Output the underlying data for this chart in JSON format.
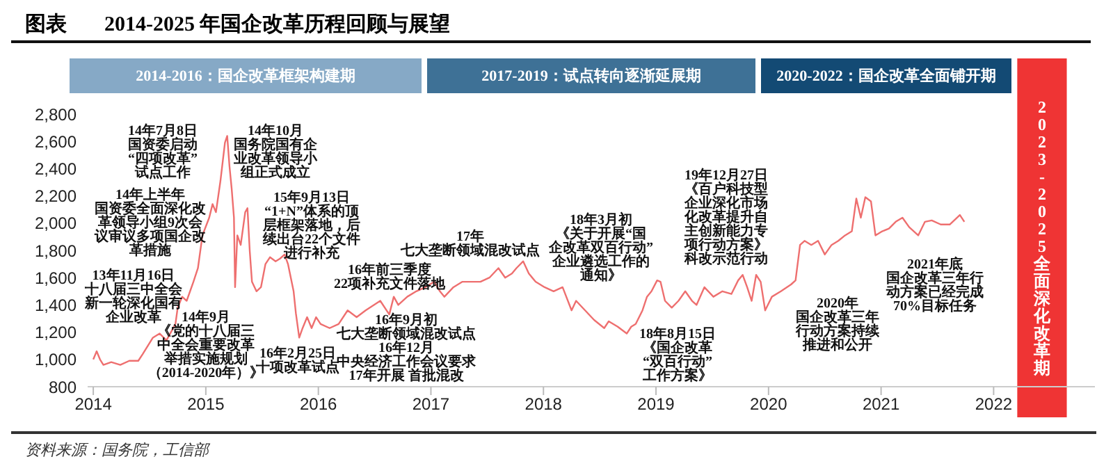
{
  "chart_data": {
    "type": "line",
    "title": "2014-2025 年国企改革历程回顾与展望",
    "annotations": [
      "图表",
      "13年11月16日十八届三中全会新一轮深化国有企业改革",
      "14年上半年国资委全面深化改革领导小组9次会议审议多项国企改革措施",
      "14年7月8日国资委启动“四项改革”试点工作",
      "14年10月国务院国有企业改革领导小组正式成立",
      "14年9月《党的十八届三中全会重要改革举措实施规划（2014-2020年）》",
      "15年9月13日“1+N”体系的顶层框架落地，后续出台22个文件进行补充",
      "16年2月25日十项改革试点",
      "16年前三季度22项补充文件落地",
      "16年9月初七大垄断领域混改试点16年12月中央经济工作会议要求17年开展 首批混改",
      "17年七大垄断领域混改试点",
      "18年3月初《关于开展“国企改革双百行动”企业遴选工作的通知》",
      "18年8月15日《国企改革“双百行动”工作方案》",
      "19年12月27日《百户科技型企业深化市场化改革提升自主创新能力专项行动方案》科改示范行动",
      "2020年国企改革三年行动方案持续推进和公开",
      "2021年底国企改革三年行动方案已经完成70%目标任务",
      "2014-2016：国企改革框架构建期",
      "2017-2019：试点转向逐渐延展期",
      "2020-2022：国企改革全面铺开期",
      "资料来源：国务院，工信部"
    ],
    "bands": [
      {
        "axis": "x",
        "from": 2022.21,
        "to": 2022.65,
        "label": "2023-2025全面深化改革期",
        "color": "#ef3434"
      }
    ],
    "x": [
      2014.0,
      2014.03,
      2014.06,
      2014.09,
      2014.16,
      2014.24,
      2014.32,
      2014.4,
      2014.44,
      2014.53,
      2014.59,
      2014.65,
      2014.73,
      2014.75,
      2014.79,
      2014.83,
      2014.89,
      2014.93,
      2014.97,
      2015.03,
      2015.06,
      2015.09,
      2015.13,
      2015.17,
      2015.19,
      2015.21,
      2015.23,
      2015.25,
      2015.26,
      2015.28,
      2015.31,
      2015.35,
      2015.37,
      2015.39,
      2015.41,
      2015.45,
      2015.49,
      2015.53,
      2015.57,
      2015.62,
      2015.66,
      2015.7,
      2015.73,
      2015.78,
      2015.8,
      2015.83,
      2015.86,
      2015.9,
      2015.94,
      2015.98,
      2016.02,
      2016.1,
      2016.18,
      2016.26,
      2016.34,
      2016.42,
      2016.55,
      2016.63,
      2016.67,
      2016.71,
      2016.79,
      2016.87,
      2016.95,
      2017.03,
      2017.08,
      2017.12,
      2017.2,
      2017.28,
      2017.36,
      2017.44,
      2017.52,
      2017.6,
      2017.66,
      2017.72,
      2017.76,
      2017.82,
      2017.87,
      2017.93,
      2018.01,
      2018.09,
      2018.17,
      2018.25,
      2018.29,
      2018.37,
      2018.45,
      2018.54,
      2018.58,
      2018.66,
      2018.74,
      2018.78,
      2018.82,
      2018.88,
      2018.92,
      2018.96,
      2019.01,
      2019.04,
      2019.08,
      2019.14,
      2019.2,
      2019.26,
      2019.32,
      2019.36,
      2019.43,
      2019.51,
      2019.59,
      2019.67,
      2019.73,
      2019.77,
      2019.81,
      2019.85,
      2019.89,
      2019.93,
      2019.97,
      2020.03,
      2020.11,
      2020.2,
      2020.24,
      2020.28,
      2020.32,
      2020.38,
      2020.44,
      2020.5,
      2020.56,
      2020.62,
      2020.68,
      2020.74,
      2020.78,
      2020.82,
      2020.86,
      2020.91,
      2020.95,
      2021.01,
      2021.07,
      2021.13,
      2021.19,
      2021.25,
      2021.33,
      2021.39,
      2021.45,
      2021.53,
      2021.61,
      2021.7,
      2021.74
    ],
    "series": [
      {
        "color": "#ee6f6f",
        "values": [
          1000,
          1060,
          1000,
          960,
          980,
          960,
          990,
          990,
          1040,
          1160,
          1190,
          1140,
          1260,
          1380,
          1460,
          1430,
          1570,
          1670,
          1910,
          2040,
          2140,
          2080,
          2310,
          2590,
          2640,
          2420,
          2250,
          2040,
          1530,
          1910,
          1840,
          2080,
          2110,
          1800,
          1570,
          1500,
          1530,
          1700,
          1750,
          1720,
          1740,
          1770,
          1700,
          1500,
          1340,
          1160,
          1230,
          1310,
          1230,
          1310,
          1260,
          1230,
          1260,
          1360,
          1310,
          1360,
          1430,
          1330,
          1460,
          1400,
          1460,
          1500,
          1530,
          1570,
          1500,
          1460,
          1530,
          1570,
          1570,
          1570,
          1600,
          1670,
          1600,
          1630,
          1670,
          1720,
          1630,
          1570,
          1530,
          1500,
          1530,
          1360,
          1430,
          1360,
          1290,
          1230,
          1280,
          1240,
          1190,
          1240,
          1260,
          1360,
          1460,
          1500,
          1580,
          1570,
          1430,
          1380,
          1430,
          1500,
          1430,
          1400,
          1530,
          1460,
          1500,
          1480,
          1580,
          1620,
          1530,
          1430,
          1620,
          1570,
          1360,
          1460,
          1500,
          1550,
          1580,
          1840,
          1870,
          1840,
          1870,
          1770,
          1840,
          1870,
          1910,
          1940,
          2180,
          2040,
          2190,
          2160,
          1910,
          1940,
          1960,
          2010,
          2040,
          1970,
          1910,
          2010,
          2020,
          1990,
          1990,
          2060,
          2010
        ]
      }
    ],
    "xlim": [
      2013.95,
      2022.9
    ],
    "xticks": [
      2014,
      2015,
      2016,
      2017,
      2018,
      2019,
      2020,
      2021,
      2022
    ],
    "ylim": [
      800,
      2800
    ],
    "yticks": [
      800,
      {
        "value": 1000,
        "label": "1,000"
      },
      {
        "value": 1200,
        "label": "1,200"
      },
      {
        "value": 1400,
        "label": "1,400"
      },
      {
        "value": 1600,
        "label": "1,600"
      },
      {
        "value": 1800,
        "label": "1,800"
      },
      {
        "value": 2000,
        "label": "2,000"
      },
      {
        "value": 2200,
        "label": "2,200"
      },
      {
        "value": 2400,
        "label": "2,400"
      },
      {
        "value": 2600,
        "label": "2,600"
      },
      {
        "value": 2800,
        "label": "2,800"
      }
    ],
    "grid": false,
    "legend": false,
    "marker": "none",
    "line_style": "solid"
  }
}
